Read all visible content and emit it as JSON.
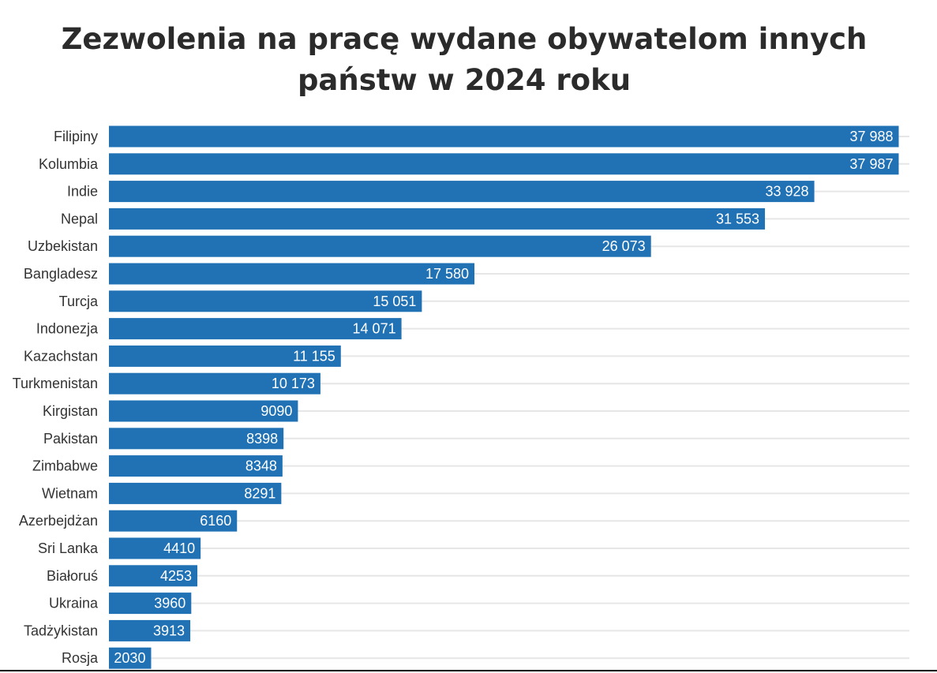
{
  "chart_data": {
    "type": "bar",
    "orientation": "horizontal",
    "title": "Zezwolenia na pracę wydane obywatelom innych państw w 2024 roku",
    "categories": [
      "Filipiny",
      "Kolumbia",
      "Indie",
      "Nepal",
      "Uzbekistan",
      "Bangladesz",
      "Turcja",
      "Indonezja",
      "Kazachstan",
      "Turkmenistan",
      "Kirgistan",
      "Pakistan",
      "Zimbabwe",
      "Wietnam",
      "Azerbejdżan",
      "Sri Lanka",
      "Białoruś",
      "Ukraina",
      "Tadżykistan",
      "Rosja"
    ],
    "values": [
      37988,
      37987,
      33928,
      31553,
      26073,
      17580,
      15051,
      14071,
      11155,
      10173,
      9090,
      8398,
      8348,
      8291,
      6160,
      4410,
      4253,
      3960,
      3913,
      2030
    ],
    "value_labels": [
      "37 988",
      "37 987",
      "33 928",
      "31 553",
      "26 073",
      "17 580",
      "15 051",
      "14 071",
      "11 155",
      "10 173",
      "9090",
      "8398",
      "8348",
      "8291",
      "6160",
      "4410",
      "4253",
      "3960",
      "3913",
      "2030"
    ],
    "xlim": [
      0,
      38500
    ],
    "xlabel": "",
    "ylabel": "",
    "grid": true,
    "legend": "none",
    "bar_color": "#2171b5",
    "label_color": "#ffffff"
  }
}
